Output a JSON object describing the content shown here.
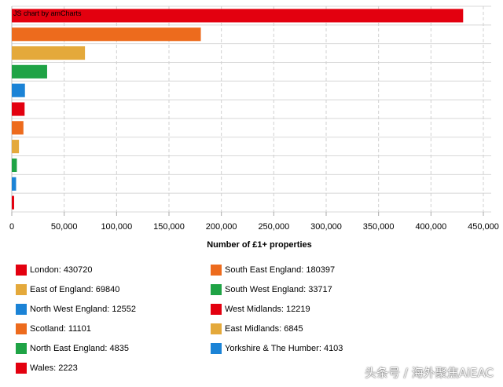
{
  "chart_data": {
    "type": "bar",
    "orientation": "horizontal",
    "categories": [
      "London",
      "South East England",
      "East of England",
      "South West England",
      "North West England",
      "West Midlands",
      "Scotland",
      "East Midlands",
      "North East England",
      "Yorkshire & The Humber",
      "Wales"
    ],
    "values": [
      430720,
      180397,
      69840,
      33717,
      12552,
      12219,
      11101,
      6845,
      4835,
      4103,
      2223
    ],
    "colors": [
      "#e3000f",
      "#ed6b1d",
      "#e4a93b",
      "#1fa345",
      "#1b83d6",
      "#e3000f",
      "#ed6b1d",
      "#e4a93b",
      "#1fa345",
      "#1b83d6",
      "#e3000f"
    ],
    "xlabel": "Number of £1+ properties",
    "xlim": [
      0,
      450000
    ],
    "x_ticks": [
      "0",
      "50,000",
      "100,000",
      "150,000",
      "200,000",
      "250,000",
      "300,000",
      "350,000",
      "400,000",
      "450,000"
    ],
    "grid": true,
    "legend_position": "bottom",
    "legend": [
      "London: 430720",
      "South East England: 180397",
      "East of England: 69840",
      "South West England: 33717",
      "North West England: 12552",
      "West Midlands: 12219",
      "Scotland: 11101",
      "East Midlands: 6845",
      "North East England: 4835",
      "Yorkshire & The Humber: 4103",
      "Wales: 2223"
    ]
  },
  "credit": "JS chart by amCharts",
  "watermark": "头条号 / 海外聚焦AiEAC"
}
